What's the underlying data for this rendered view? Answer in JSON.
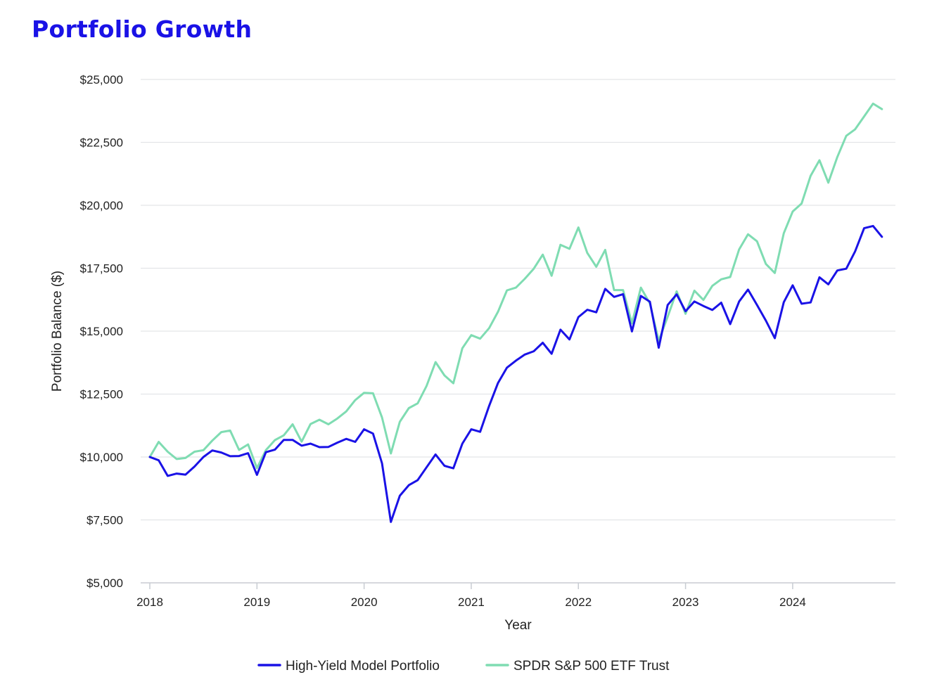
{
  "page": {
    "title": "Portfolio Growth"
  },
  "colors": {
    "title": "#1a12e6",
    "grid": "#e3e5e8",
    "axis": "#c8ccd2",
    "text": "#222222"
  },
  "chart_data": {
    "type": "line",
    "title": "Portfolio Growth",
    "xlabel": "Year",
    "ylabel": "Portfolio Balance ($)",
    "xlim": [
      2018.0,
      2024.9
    ],
    "ylim": [
      5000,
      25000
    ],
    "x_ticks": [
      2018,
      2019,
      2020,
      2021,
      2022,
      2023,
      2024
    ],
    "x_tick_labels": [
      "2018",
      "2019",
      "2020",
      "2021",
      "2022",
      "2023",
      "2024"
    ],
    "y_ticks": [
      5000,
      7500,
      10000,
      12500,
      15000,
      17500,
      20000,
      22500,
      25000
    ],
    "y_tick_labels": [
      "$5,000",
      "$7,500",
      "$10,000",
      "$12,500",
      "$15,000",
      "$17,500",
      "$20,000",
      "$22,500",
      "$25,000"
    ],
    "grid": true,
    "legend_position": "bottom-center",
    "x": [
      2018.0,
      2018.083,
      2018.167,
      2018.25,
      2018.333,
      2018.417,
      2018.5,
      2018.583,
      2018.667,
      2018.75,
      2018.833,
      2018.917,
      2019.0,
      2019.083,
      2019.167,
      2019.25,
      2019.333,
      2019.417,
      2019.5,
      2019.583,
      2019.667,
      2019.75,
      2019.833,
      2019.917,
      2020.0,
      2020.083,
      2020.167,
      2020.25,
      2020.333,
      2020.417,
      2020.5,
      2020.583,
      2020.667,
      2020.75,
      2020.833,
      2020.917,
      2021.0,
      2021.083,
      2021.167,
      2021.25,
      2021.333,
      2021.417,
      2021.5,
      2021.583,
      2021.667,
      2021.75,
      2021.833,
      2021.917,
      2022.0,
      2022.083,
      2022.167,
      2022.25,
      2022.333,
      2022.417,
      2022.5,
      2022.583,
      2022.667,
      2022.75,
      2022.833,
      2022.917,
      2023.0,
      2023.083,
      2023.167,
      2023.25,
      2023.333,
      2023.417,
      2023.5,
      2023.583,
      2023.667,
      2023.75,
      2023.833,
      2023.917,
      2024.0,
      2024.083,
      2024.167,
      2024.25,
      2024.333,
      2024.417,
      2024.5,
      2024.583,
      2024.667,
      2024.75,
      2024.833
    ],
    "series": [
      {
        "name": "High-Yield Model Portfolio",
        "color": "#1a12e6",
        "values": [
          10000,
          9870,
          9250,
          9340,
          9300,
          9620,
          10000,
          10260,
          10180,
          10030,
          10040,
          10150,
          9290,
          10190,
          10290,
          10680,
          10680,
          10450,
          10530,
          10390,
          10400,
          10570,
          10720,
          10600,
          11100,
          10930,
          9750,
          7420,
          8460,
          8880,
          9080,
          9590,
          10100,
          9650,
          9550,
          10530,
          11100,
          11000,
          12030,
          12940,
          13550,
          13830,
          14070,
          14200,
          14540,
          14100,
          15060,
          14670,
          15560,
          15850,
          15750,
          16680,
          16360,
          16470,
          14990,
          16400,
          16170,
          14340,
          16040,
          16460,
          15790,
          16180,
          16000,
          15840,
          16130,
          15280,
          16180,
          16650,
          16040,
          15420,
          14720,
          16150,
          16820,
          16090,
          16140,
          17140,
          16860,
          17410,
          17480,
          18170,
          19090,
          19180,
          18750
        ]
      },
      {
        "name": "SPDR S&P 500 ETF Trust",
        "color": "#7fdcb2",
        "values": [
          10000,
          10600,
          10210,
          9920,
          9960,
          10210,
          10270,
          10650,
          10990,
          11050,
          10280,
          10500,
          9560,
          10270,
          10670,
          10860,
          11300,
          10610,
          11310,
          11480,
          11300,
          11530,
          11810,
          12260,
          12550,
          12530,
          11570,
          10140,
          11400,
          11940,
          12130,
          12820,
          13770,
          13240,
          12930,
          14320,
          14840,
          14700,
          15120,
          15770,
          16620,
          16730,
          17080,
          17480,
          18040,
          17200,
          18430,
          18270,
          19120,
          18110,
          17560,
          18230,
          16630,
          16630,
          15310,
          16730,
          16100,
          14620,
          15570,
          16580,
          15690,
          16610,
          16240,
          16800,
          17060,
          17150,
          18250,
          18850,
          18570,
          17670,
          17310,
          18890,
          19750,
          20070,
          21170,
          21790,
          20900,
          21920,
          22760,
          23020,
          23530,
          24040,
          23820
        ]
      }
    ]
  }
}
